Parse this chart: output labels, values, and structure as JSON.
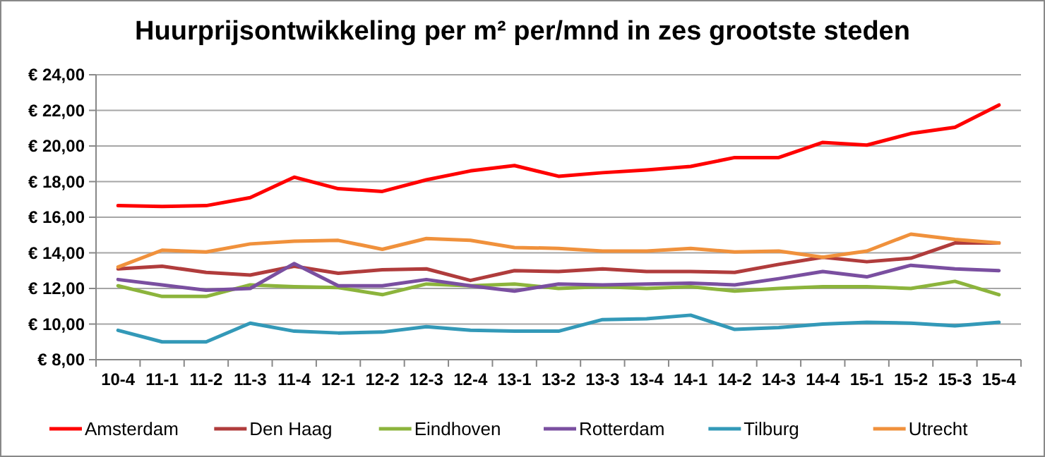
{
  "chart_data": {
    "type": "line",
    "title": "Huurprijsontwikkeling per m² per/mnd in zes grootste steden",
    "categories": [
      "10-4",
      "11-1",
      "11-2",
      "11-3",
      "11-4",
      "12-1",
      "12-2",
      "12-3",
      "12-4",
      "13-1",
      "13-2",
      "13-3",
      "13-4",
      "14-1",
      "14-2",
      "14-3",
      "14-4",
      "15-1",
      "15-2",
      "15-3",
      "15-4"
    ],
    "series": [
      {
        "name": "Amsterdam",
        "color": "#ff0000",
        "values": [
          16.65,
          16.6,
          16.65,
          17.1,
          18.25,
          17.6,
          17.45,
          18.1,
          18.6,
          18.9,
          18.3,
          18.5,
          18.65,
          18.85,
          19.35,
          19.35,
          20.2,
          20.05,
          20.7,
          21.05,
          22.3
        ]
      },
      {
        "name": "Den Haag",
        "color": "#b03c3c",
        "values": [
          13.1,
          13.25,
          12.9,
          12.75,
          13.25,
          12.85,
          13.05,
          13.1,
          12.45,
          13.0,
          12.95,
          13.1,
          12.95,
          12.95,
          12.9,
          13.35,
          13.75,
          13.5,
          13.7,
          14.55,
          14.55
        ]
      },
      {
        "name": "Eindhoven",
        "color": "#8cb43c",
        "values": [
          12.15,
          11.55,
          11.55,
          12.2,
          12.1,
          12.05,
          11.65,
          12.25,
          12.15,
          12.25,
          12.0,
          12.1,
          12.0,
          12.1,
          11.85,
          12.0,
          12.1,
          12.1,
          12.0,
          12.4,
          11.65
        ]
      },
      {
        "name": "Rotterdam",
        "color": "#7a4fa0",
        "values": [
          12.5,
          12.2,
          11.9,
          12.0,
          13.4,
          12.15,
          12.15,
          12.5,
          12.15,
          11.85,
          12.25,
          12.2,
          12.25,
          12.3,
          12.2,
          12.55,
          12.95,
          12.65,
          13.3,
          13.1,
          13.0
        ]
      },
      {
        "name": "Tilburg",
        "color": "#3399b8",
        "values": [
          9.65,
          9.0,
          9.0,
          10.05,
          9.6,
          9.5,
          9.55,
          9.85,
          9.65,
          9.6,
          9.6,
          10.25,
          10.3,
          10.5,
          9.7,
          9.8,
          10.0,
          10.1,
          10.05,
          9.9,
          10.1
        ]
      },
      {
        "name": "Utrecht",
        "color": "#f0913c",
        "values": [
          13.2,
          14.15,
          14.05,
          14.5,
          14.65,
          14.7,
          14.2,
          14.8,
          14.7,
          14.3,
          14.25,
          14.1,
          14.1,
          14.25,
          14.05,
          14.1,
          13.75,
          14.1,
          15.05,
          14.75,
          14.55
        ]
      }
    ],
    "ylim": [
      8,
      24
    ],
    "yticks": [
      {
        "value": 8,
        "label": "€ 8,00"
      },
      {
        "value": 10,
        "label": "€ 10,00"
      },
      {
        "value": 12,
        "label": "€ 12,00"
      },
      {
        "value": 14,
        "label": "€ 14,00"
      },
      {
        "value": 16,
        "label": "€ 16,00"
      },
      {
        "value": 18,
        "label": "€ 18,00"
      },
      {
        "value": 20,
        "label": "€ 20,00"
      },
      {
        "value": 22,
        "label": "€ 22,00"
      },
      {
        "value": 24,
        "label": "€ 24,00"
      }
    ],
    "grid": "y",
    "legend": "bottom",
    "line_style": "solid",
    "marker": "none"
  }
}
